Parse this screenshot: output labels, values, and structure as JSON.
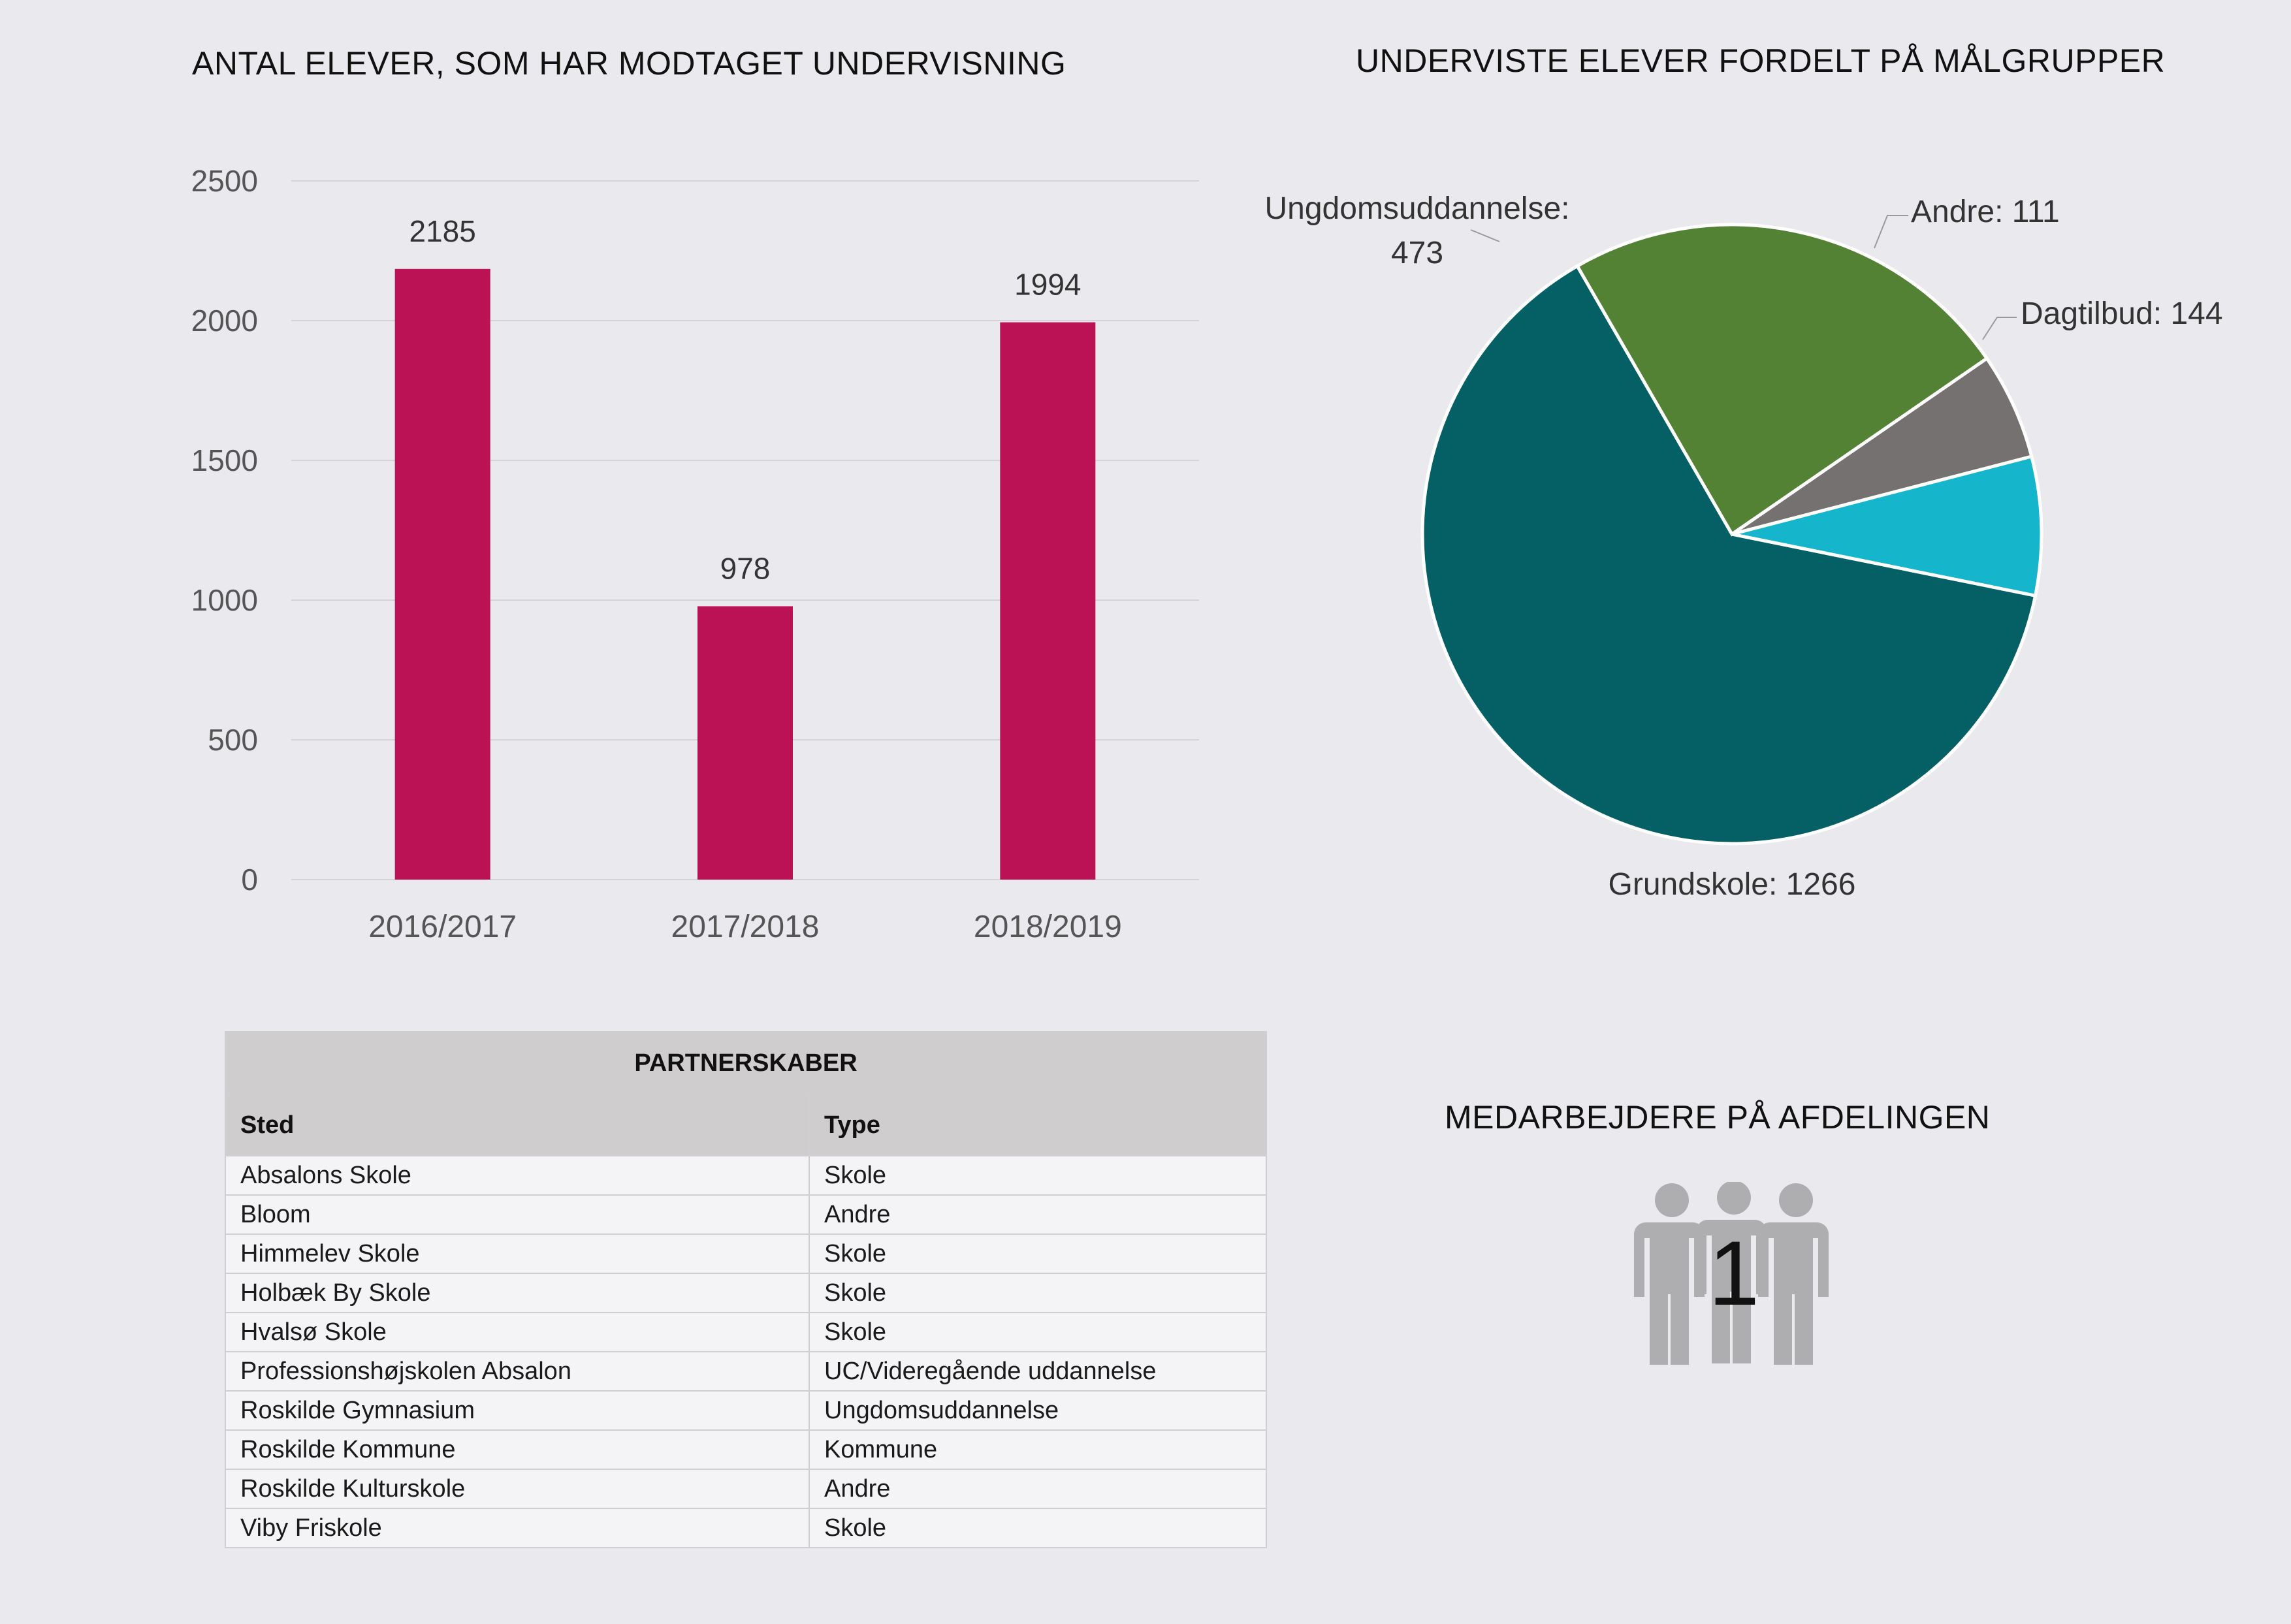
{
  "bar_title": "ANTAL ELEVER, SOM HAR MODTAGET UNDERVISNING",
  "pie_title": "UNDERVISTE ELEVER FORDELT PÅ MÅLGRUPPER",
  "staff_title": "MEDARBEJDERE PÅ AFDELINGEN",
  "staff_count": "1",
  "chart_data": [
    {
      "type": "bar",
      "title": "ANTAL ELEVER, SOM HAR MODTAGET UNDERVISNING",
      "categories": [
        "2016/2017",
        "2017/2018",
        "2018/2019"
      ],
      "values": [
        2185,
        978,
        1994
      ],
      "ylim": [
        0,
        2500
      ],
      "yticks": [
        0,
        500,
        1000,
        1500,
        2000,
        2500
      ],
      "grid": true,
      "color": "#bb1155",
      "xlabel": "",
      "ylabel": ""
    },
    {
      "type": "pie",
      "title": "UNDERVISTE ELEVER FORDELT PÅ MÅLGRUPPER",
      "slices": [
        {
          "name": "Grundskole",
          "value": 1266,
          "color": "#046065",
          "label_lines": [
            "Grundskole: 1266"
          ]
        },
        {
          "name": "Ungdomsuddannelse",
          "value": 473,
          "color": "#548235",
          "label_lines": [
            "Ungdomsuddannelse:",
            "473"
          ]
        },
        {
          "name": "Andre",
          "value": 111,
          "color": "#767171",
          "label_lines": [
            "Andre: 111"
          ]
        },
        {
          "name": "Dagtilbud",
          "value": 144,
          "color": "#15b5cc",
          "label_lines": [
            "Dagtilbud: 144"
          ]
        }
      ]
    }
  ],
  "table": {
    "caption": "PARTNERSKABER",
    "headers": [
      "Sted",
      "Type"
    ],
    "rows": [
      [
        "Absalons Skole",
        "Skole"
      ],
      [
        "Bloom",
        "Andre"
      ],
      [
        "Himmelev Skole",
        "Skole"
      ],
      [
        "Holbæk By Skole",
        "Skole"
      ],
      [
        "Hvalsø Skole",
        "Skole"
      ],
      [
        "Professionshøjskolen Absalon",
        "UC/Videregående uddannelse"
      ],
      [
        "Roskilde Gymnasium",
        "Ungdomsuddannelse"
      ],
      [
        "Roskilde Kommune",
        "Kommune"
      ],
      [
        "Roskilde Kulturskole",
        "Andre"
      ],
      [
        "Viby Friskole",
        "Skole"
      ]
    ]
  },
  "icons": {
    "staff": "people-group-icon"
  }
}
